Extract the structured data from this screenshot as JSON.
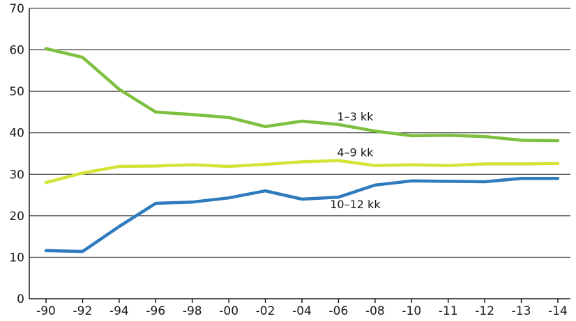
{
  "chart_data": {
    "type": "line",
    "categories": [
      "-90",
      "-92",
      "-94",
      "-96",
      "-98",
      "-00",
      "-02",
      "-04",
      "-06",
      "-08",
      "-10",
      "-11",
      "-12",
      "-13",
      "-14"
    ],
    "yticks": [
      "0",
      "10",
      "20",
      "30",
      "40",
      "50",
      "60",
      "70"
    ],
    "ylim": [
      0,
      70
    ],
    "grid": true,
    "series": [
      {
        "name": "1–3 kk",
        "color": "#7dbf3f",
        "values": [
          60.3,
          58.2,
          50.5,
          45.0,
          44.4,
          43.7,
          41.5,
          42.8,
          42.0,
          40.4,
          39.3,
          39.4,
          39.1,
          38.2,
          38.1
        ]
      },
      {
        "name": "4–9 kk",
        "color": "#d4e338",
        "values": [
          28.0,
          30.3,
          31.9,
          32.0,
          32.3,
          31.9,
          32.4,
          33.0,
          33.3,
          32.1,
          32.3,
          32.1,
          32.5,
          32.5,
          32.6
        ]
      },
      {
        "name": "10–12 kk",
        "color": "#2f7bbd",
        "values": [
          11.6,
          11.4,
          17.4,
          23.0,
          23.3,
          24.3,
          26.0,
          24.0,
          24.5,
          27.4,
          28.4,
          28.3,
          28.2,
          29.0,
          29.0
        ]
      }
    ]
  }
}
